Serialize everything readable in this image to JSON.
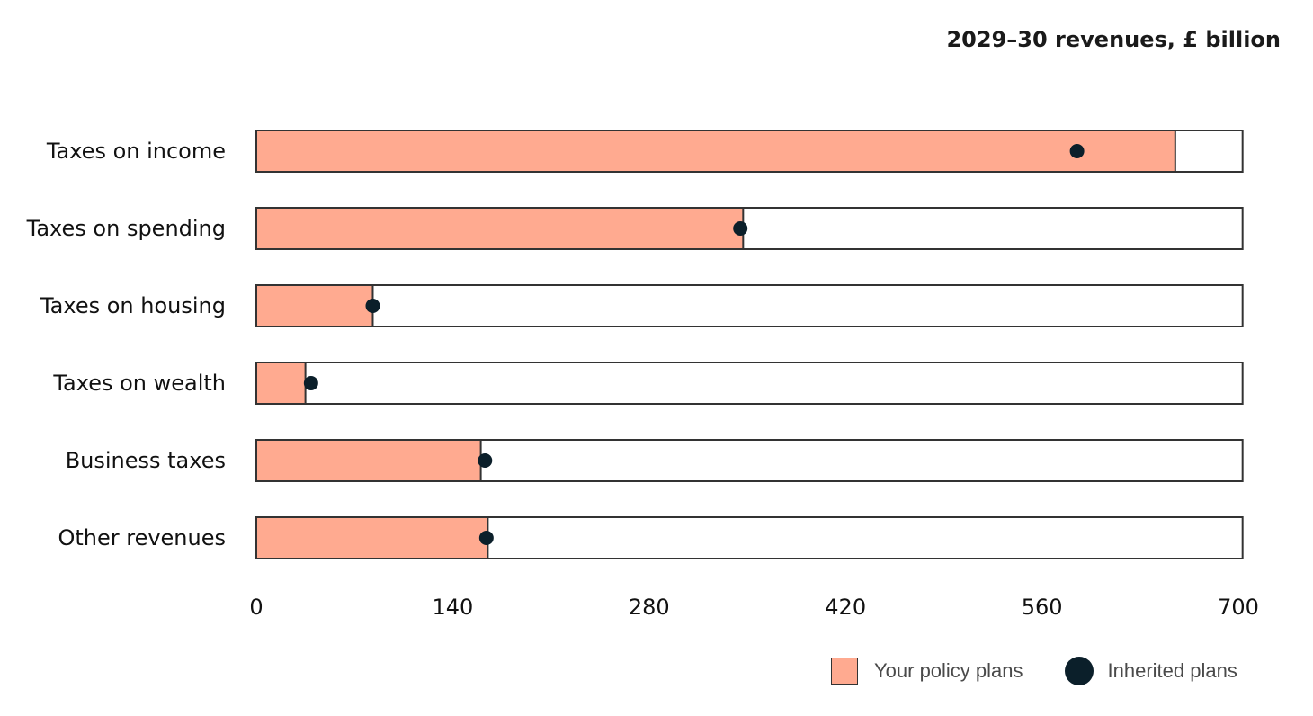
{
  "chart_data": {
    "type": "bar",
    "orientation": "horizontal",
    "title": "2029–30 revenues, £ billion",
    "categories": [
      "Taxes on income",
      "Taxes on spending",
      "Taxes on housing",
      "Taxes on wealth",
      "Business taxes",
      "Other revenues"
    ],
    "series": [
      {
        "name": "Your policy plans",
        "marker": "bar",
        "values": [
          655,
          347,
          83,
          35,
          160,
          165
        ]
      },
      {
        "name": "Inherited plans",
        "marker": "dot",
        "values": [
          585,
          345,
          83,
          39,
          163,
          164
        ]
      }
    ],
    "bar_max": 703,
    "xlim": [
      0,
      700
    ],
    "xticks": [
      "0",
      "140",
      "280",
      "420",
      "560",
      "700"
    ],
    "grid": false,
    "legend_position": "bottom-right",
    "colors": {
      "bar_fill": "#FFAA90",
      "bar_track": "#FFFFFF",
      "bar_border": "#333333",
      "dot": "#0B1F2A"
    }
  }
}
